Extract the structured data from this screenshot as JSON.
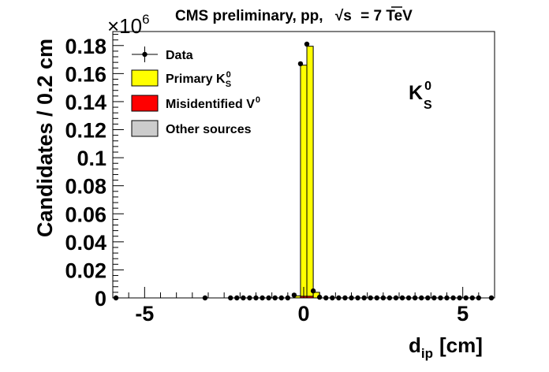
{
  "chart_data": {
    "type": "bar",
    "title_parts": {
      "prefix": "CMS preliminary, pp,",
      "sqrt": "√",
      "s_var": "s",
      "suffix": "= 7 TeV"
    },
    "multiplier": {
      "base": "×10",
      "exp": "6"
    },
    "ylabel": "Candidates / 0.2 cm",
    "xlabel": {
      "main": "d",
      "sub": "ip",
      "unit": "[cm]"
    },
    "particle_label": {
      "main": "K",
      "sup": "0",
      "sub": "S"
    },
    "xlim": [
      -6,
      6
    ],
    "ylim": [
      0,
      0.19
    ],
    "bin_width": 0.2,
    "x_ticks": [
      {
        "v": -5,
        "label": "-5"
      },
      {
        "v": 0,
        "label": "0"
      },
      {
        "v": 5,
        "label": "5"
      }
    ],
    "y_ticks": [
      {
        "v": 0,
        "label": "0"
      },
      {
        "v": 0.02,
        "label": "0.02"
      },
      {
        "v": 0.04,
        "label": "0.04"
      },
      {
        "v": 0.06,
        "label": "0.06"
      },
      {
        "v": 0.08,
        "label": "0.08"
      },
      {
        "v": 0.1,
        "label": "0.1"
      },
      {
        "v": 0.12,
        "label": "0.12"
      },
      {
        "v": 0.14,
        "label": "0.14"
      },
      {
        "v": 0.16,
        "label": "0.16"
      },
      {
        "v": 0.18,
        "label": "0.18"
      }
    ],
    "legend": [
      {
        "key": "data",
        "label": "Data",
        "style": "marker"
      },
      {
        "key": "primary",
        "label_main": "Primary K",
        "label_sup": "0",
        "label_sub": "S",
        "style": "box",
        "color": "#ffff00"
      },
      {
        "key": "misid",
        "label_main": "Misidentified V",
        "label_sup": "0",
        "style": "box",
        "color": "#ff0000"
      },
      {
        "key": "other",
        "label": "Other sources",
        "style": "box",
        "color": "#cccccc"
      }
    ],
    "series": [
      {
        "key": "primary",
        "color": "#ffff00",
        "bins": [
          {
            "x": -0.2,
            "y": 0.0015
          },
          {
            "x": 0.0,
            "y": 0.166
          },
          {
            "x": 0.2,
            "y": 0.1795
          },
          {
            "x": 0.4,
            "y": 0.004
          }
        ]
      },
      {
        "key": "misid",
        "color": "#ff0000",
        "bins": [
          {
            "x": 0.0,
            "y": 0.0012
          },
          {
            "x": 0.2,
            "y": 0.0012
          }
        ]
      }
    ],
    "data_points": {
      "x": [
        -5.9,
        -3.1,
        -2.3,
        -2.1,
        -1.9,
        -1.7,
        -1.5,
        -1.3,
        -1.1,
        -0.9,
        -0.7,
        -0.5,
        -0.3,
        -0.1,
        0.1,
        0.3,
        0.5,
        0.7,
        0.9,
        1.1,
        1.3,
        1.5,
        1.7,
        1.9,
        2.1,
        2.3,
        2.5,
        2.7,
        2.9,
        3.1,
        3.3,
        3.5,
        3.7,
        3.9,
        4.1,
        4.3,
        4.5,
        4.7,
        4.9,
        5.1,
        5.3,
        5.5,
        5.9
      ],
      "y": [
        0,
        0,
        0,
        0,
        0,
        0,
        0,
        0,
        0,
        0,
        0,
        0,
        0.002,
        0.167,
        0.181,
        0.005,
        0.0005,
        0,
        0,
        0,
        0,
        0,
        0,
        0,
        0,
        0,
        0,
        0,
        0,
        0,
        0,
        0,
        0,
        0,
        0,
        0,
        0,
        0,
        0,
        0,
        0,
        0,
        0
      ]
    }
  }
}
